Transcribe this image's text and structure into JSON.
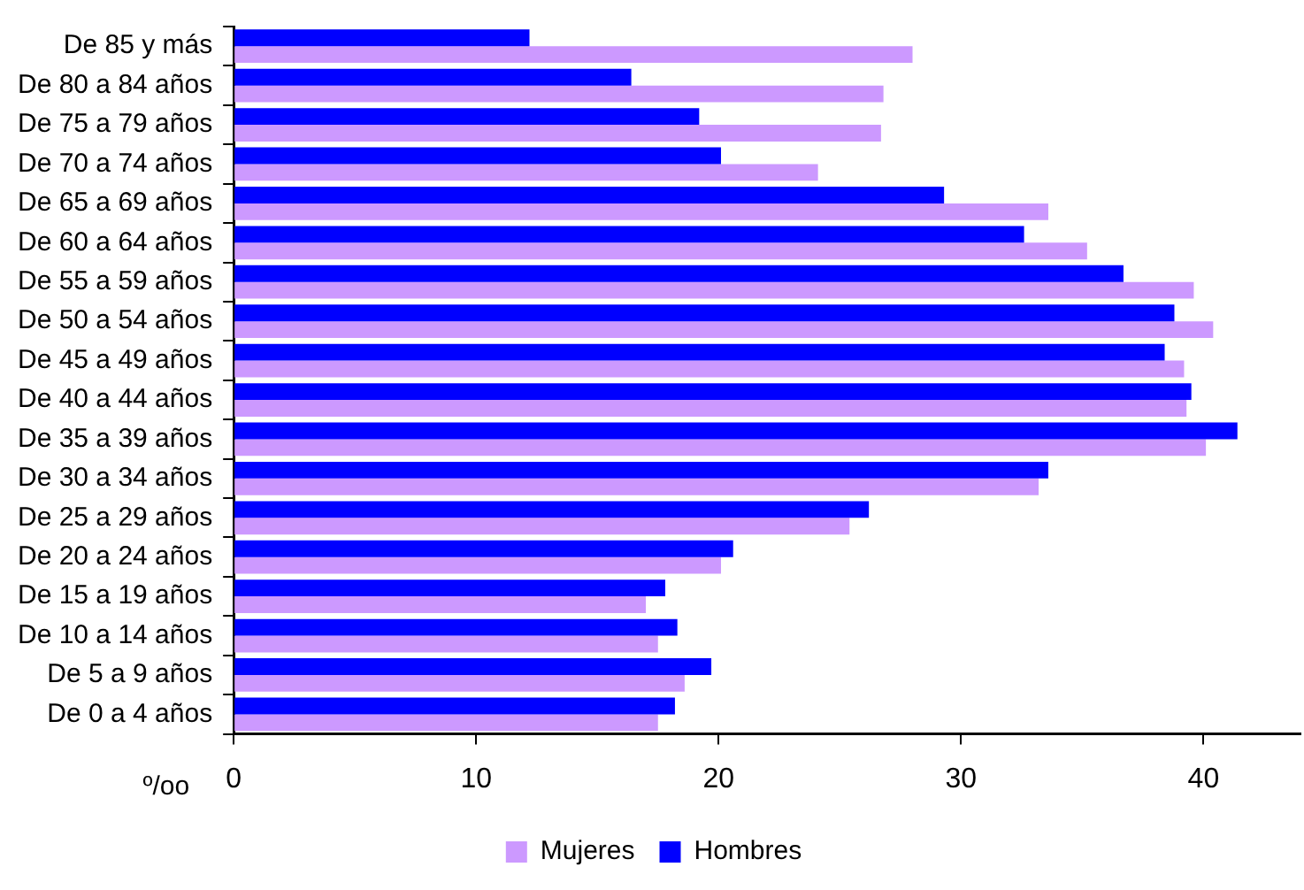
{
  "chart_data": {
    "type": "bar",
    "orientation": "horizontal",
    "xlabel": "º/oo",
    "categories": [
      "De 85 y más",
      "De 80 a 84 años",
      "De 75 a 79 años",
      "De 70 a 74 años",
      "De 65 a 69 años",
      "De 60 a 64 años",
      "De 55 a 59 años",
      "De 50 a 54 años",
      "De 45 a 49 años",
      "De 40 a 44 años",
      "De 35 a 39 años",
      "De 30 a 34 años",
      "De 25 a 29 años",
      "De 20 a 24 años",
      "De 15 a 19 años",
      "De 10 a 14 años",
      "De 5 a 9 años",
      "De 0 a 4 años"
    ],
    "series": [
      {
        "name": "Mujeres",
        "color": "#cc99ff",
        "values": [
          28.0,
          26.8,
          26.7,
          24.1,
          33.6,
          35.2,
          39.6,
          40.4,
          39.2,
          39.3,
          40.1,
          33.2,
          25.4,
          20.1,
          17.0,
          17.5,
          18.6,
          17.5
        ]
      },
      {
        "name": "Hombres",
        "color": "#0000ff",
        "values": [
          12.2,
          16.4,
          19.2,
          20.1,
          29.3,
          32.6,
          36.7,
          38.8,
          38.4,
          39.5,
          41.4,
          33.6,
          26.2,
          20.6,
          17.8,
          18.3,
          19.7,
          18.2
        ]
      }
    ],
    "xlim": [
      0,
      44
    ],
    "xticks": [
      0,
      10,
      20,
      30,
      40
    ],
    "grid": false,
    "legend": "bottom"
  }
}
